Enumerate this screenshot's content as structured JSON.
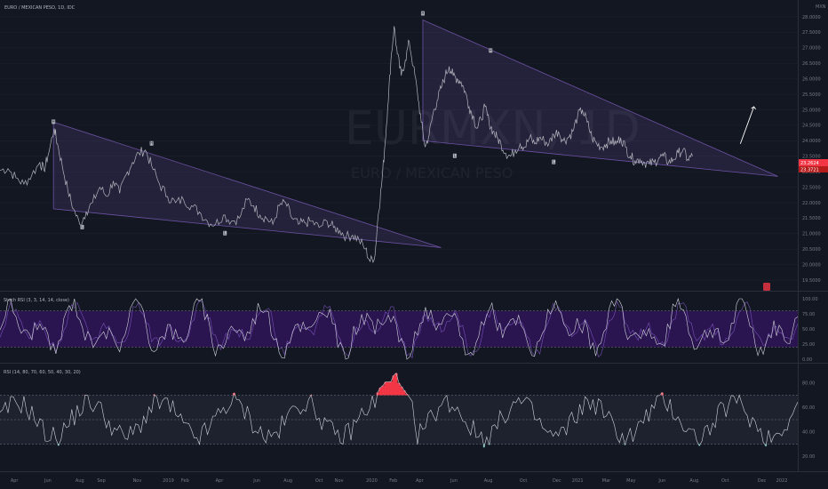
{
  "header": {
    "title": "EURO / MEXICAN PESO, 1D, IDC",
    "currency": "MXN",
    "watermark_symbol": "EURMXN, 1D",
    "watermark_name": "EURO / MEXICAN PESO"
  },
  "colors": {
    "background": "#131722",
    "price_line": "#b2b5be",
    "triangle": "#7b5cb8",
    "rsi_overbought": "#f23645",
    "rsi_oversold": "#26a69a",
    "stoch_band": "#4a148c",
    "last_price": "#f23645"
  },
  "chart_data": [
    {
      "type": "line",
      "name": "main-price",
      "y_ticks": [
        "28.0000",
        "27.5000",
        "27.0000",
        "26.5000",
        "26.0000",
        "25.5000",
        "25.0000",
        "24.5000",
        "24.0000",
        "23.5000",
        "23.0000",
        "22.5000",
        "22.0000",
        "21.5000",
        "21.0000",
        "20.5000",
        "20.0000",
        "19.5000"
      ],
      "ylim": [
        19.3,
        28.2
      ],
      "x_labels": [
        "Apr",
        "Jun",
        "Aug",
        "Sep",
        "Nov",
        "2019",
        "Feb",
        "Apr",
        "Jun",
        "Aug",
        "Oct",
        "Nov",
        "2020",
        "Feb",
        "Apr",
        "Jun",
        "Aug",
        "Oct",
        "Dec",
        "2021",
        "Mar",
        "May",
        "Jun",
        "Aug",
        "Oct",
        "Dec",
        "2022"
      ],
      "x_label_fracs": [
        0.018,
        0.06,
        0.1,
        0.127,
        0.172,
        0.211,
        0.232,
        0.275,
        0.322,
        0.361,
        0.4,
        0.425,
        0.466,
        0.493,
        0.526,
        0.569,
        0.612,
        0.656,
        0.698,
        0.724,
        0.76,
        0.791,
        0.83,
        0.87,
        0.909,
        0.955,
        0.98
      ],
      "price_points": [
        [
          0,
          23.05
        ],
        [
          0.01,
          23.1
        ],
        [
          0.02,
          22.8
        ],
        [
          0.03,
          22.6
        ],
        [
          0.04,
          22.9
        ],
        [
          0.05,
          23.3
        ],
        [
          0.055,
          23.05
        ],
        [
          0.06,
          23.5
        ],
        [
          0.068,
          24.4
        ],
        [
          0.072,
          23.9
        ],
        [
          0.078,
          23.2
        ],
        [
          0.085,
          22.4
        ],
        [
          0.092,
          21.8
        ],
        [
          0.1,
          21.3
        ],
        [
          0.108,
          21.7
        ],
        [
          0.116,
          22.0
        ],
        [
          0.125,
          22.5
        ],
        [
          0.134,
          22.2
        ],
        [
          0.142,
          22.7
        ],
        [
          0.15,
          22.3
        ],
        [
          0.158,
          22.9
        ],
        [
          0.166,
          23.3
        ],
        [
          0.174,
          23.6
        ],
        [
          0.182,
          23.7
        ],
        [
          0.19,
          23.2
        ],
        [
          0.2,
          22.6
        ],
        [
          0.21,
          22.2
        ],
        [
          0.22,
          22.0
        ],
        [
          0.23,
          22.1
        ],
        [
          0.24,
          21.9
        ],
        [
          0.25,
          21.7
        ],
        [
          0.26,
          21.4
        ],
        [
          0.27,
          21.3
        ],
        [
          0.28,
          21.6
        ],
        [
          0.29,
          21.4
        ],
        [
          0.3,
          21.5
        ],
        [
          0.31,
          22.1
        ],
        [
          0.318,
          21.9
        ],
        [
          0.326,
          21.6
        ],
        [
          0.334,
          21.5
        ],
        [
          0.342,
          21.3
        ],
        [
          0.35,
          21.9
        ],
        [
          0.358,
          22.0
        ],
        [
          0.366,
          21.5
        ],
        [
          0.374,
          21.3
        ],
        [
          0.382,
          21.35
        ],
        [
          0.39,
          21.4
        ],
        [
          0.4,
          21.2
        ],
        [
          0.41,
          21.4
        ],
        [
          0.418,
          21.2
        ],
        [
          0.426,
          21.1
        ],
        [
          0.434,
          20.9
        ],
        [
          0.442,
          20.95
        ],
        [
          0.45,
          20.8
        ],
        [
          0.458,
          20.5
        ],
        [
          0.464,
          20.1
        ],
        [
          0.47,
          20.3
        ],
        [
          0.474,
          21.6
        ],
        [
          0.478,
          22.5
        ],
        [
          0.482,
          23.7
        ],
        [
          0.486,
          25.1
        ],
        [
          0.49,
          26.6
        ],
        [
          0.494,
          27.7
        ],
        [
          0.498,
          26.8
        ],
        [
          0.503,
          26.1
        ],
        [
          0.508,
          26.6
        ],
        [
          0.513,
          27.2
        ],
        [
          0.518,
          26.4
        ],
        [
          0.523,
          25.6
        ],
        [
          0.528,
          24.6
        ],
        [
          0.533,
          23.8
        ],
        [
          0.538,
          24.2
        ],
        [
          0.543,
          24.9
        ],
        [
          0.548,
          25.3
        ],
        [
          0.553,
          25.7
        ],
        [
          0.558,
          26.1
        ],
        [
          0.563,
          26.4
        ],
        [
          0.568,
          26.1
        ],
        [
          0.573,
          26.0
        ],
        [
          0.578,
          25.9
        ],
        [
          0.583,
          25.6
        ],
        [
          0.588,
          25.1
        ],
        [
          0.593,
          24.8
        ],
        [
          0.598,
          24.4
        ],
        [
          0.603,
          24.7
        ],
        [
          0.608,
          25.1
        ],
        [
          0.613,
          24.6
        ],
        [
          0.618,
          24.3
        ],
        [
          0.623,
          24.1
        ],
        [
          0.628,
          23.9
        ],
        [
          0.634,
          23.6
        ],
        [
          0.64,
          23.5
        ],
        [
          0.646,
          23.7
        ],
        [
          0.652,
          23.9
        ],
        [
          0.658,
          23.8
        ],
        [
          0.664,
          24.1
        ],
        [
          0.67,
          23.9
        ],
        [
          0.676,
          24.1
        ],
        [
          0.682,
          24.0
        ],
        [
          0.688,
          23.9
        ],
        [
          0.694,
          24.2
        ],
        [
          0.7,
          24.3
        ],
        [
          0.706,
          24.0
        ],
        [
          0.712,
          24.1
        ],
        [
          0.718,
          24.3
        ],
        [
          0.724,
          24.8
        ],
        [
          0.73,
          25.0
        ],
        [
          0.736,
          24.6
        ],
        [
          0.742,
          24.1
        ],
        [
          0.748,
          23.9
        ],
        [
          0.754,
          23.8
        ],
        [
          0.76,
          23.9
        ],
        [
          0.766,
          24.0
        ],
        [
          0.772,
          23.9
        ],
        [
          0.778,
          24.1
        ],
        [
          0.784,
          23.8
        ],
        [
          0.79,
          23.5
        ],
        [
          0.796,
          23.35
        ],
        [
          0.802,
          23.4
        ],
        [
          0.808,
          23.3
        ],
        [
          0.814,
          23.25
        ],
        [
          0.82,
          23.3
        ],
        [
          0.826,
          23.45
        ],
        [
          0.832,
          23.5
        ],
        [
          0.838,
          23.3
        ],
        [
          0.844,
          23.4
        ],
        [
          0.85,
          23.6
        ],
        [
          0.856,
          23.7
        ],
        [
          0.862,
          23.4
        ],
        [
          0.868,
          23.5
        ]
      ],
      "triangles": [
        {
          "p1": [
            0.067,
            24.6
          ],
          "p2": [
            0.553,
            20.55
          ],
          "p3": [
            0.067,
            21.8
          ]
        },
        {
          "p1": [
            0.53,
            27.9
          ],
          "p2": [
            0.975,
            22.85
          ],
          "p3": [
            0.53,
            24.0
          ]
        }
      ],
      "pivot_markers": [
        {
          "x": 0.067,
          "y": 24.6,
          "label": "H"
        },
        {
          "x": 0.103,
          "y": 21.2,
          "label": "L"
        },
        {
          "x": 0.19,
          "y": 23.9,
          "label": "H"
        },
        {
          "x": 0.282,
          "y": 21.0,
          "label": "L"
        },
        {
          "x": 0.53,
          "y": 28.1,
          "label": "H"
        },
        {
          "x": 0.57,
          "y": 23.5,
          "label": "L"
        },
        {
          "x": 0.615,
          "y": 26.9,
          "label": "H"
        },
        {
          "x": 0.694,
          "y": 23.3,
          "label": "L"
        }
      ],
      "arrow": {
        "from": [
          0.928,
          23.9
        ],
        "to": [
          0.945,
          25.1
        ]
      },
      "last_price": "23.2624",
      "last_price_extra": "23.3721"
    },
    {
      "type": "line",
      "name": "stoch-rsi",
      "title": "Stoch RSI (3, 3, 14, 14, close)",
      "y_ticks": [
        "100.00",
        "75.00",
        "50.00",
        "25.00",
        "0.00"
      ],
      "ylim": [
        0,
        100
      ],
      "band": [
        20,
        80
      ]
    },
    {
      "type": "line",
      "name": "rsi",
      "title": "RSI (14, 80, 70, 60, 50, 40, 30, 20)",
      "y_ticks": [
        "80.00",
        "60.00",
        "40.00",
        "20.00"
      ],
      "ylim": [
        10,
        90
      ],
      "levels": [
        70,
        30,
        50
      ]
    }
  ]
}
